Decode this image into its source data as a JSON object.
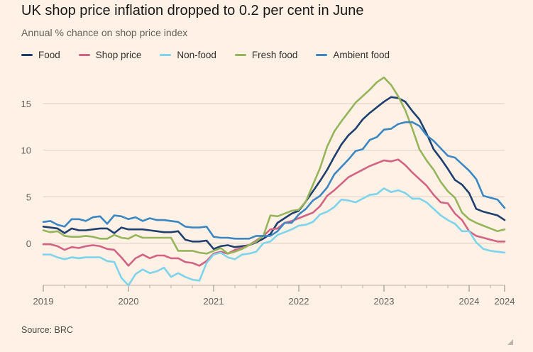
{
  "title": "UK shop price inflation dropped to 0.2 per cent in June",
  "subtitle": "Annual % chance on shop price index",
  "source": "Source: BRC",
  "colors": {
    "background": "#fff1e5",
    "grid": "#d9cfc5",
    "food": "#1f3f6e",
    "shop_price": "#d36385",
    "non_food": "#7dd4eb",
    "fresh_food": "#96b55b",
    "ambient_food": "#3c87c2"
  },
  "chart_data": {
    "type": "line",
    "title": "UK shop price inflation dropped to 0.2 per cent in June",
    "subtitle": "Annual % chance on shop price index",
    "xlabel": "",
    "ylabel": "",
    "xlim": [
      "2019-01",
      "2024-06"
    ],
    "ylim": [
      -4.5,
      18.5
    ],
    "yticks": [
      0,
      5,
      10,
      15
    ],
    "xtick_labels": [
      {
        "label": "2019",
        "x": "2019-01"
      },
      {
        "label": "2020",
        "x": "2020-01"
      },
      {
        "label": "2021",
        "x": "2021-01"
      },
      {
        "label": "2022",
        "x": "2022-01"
      },
      {
        "label": "2023",
        "x": "2023-01"
      },
      {
        "label": "2024",
        "x": "2024-01"
      },
      {
        "label": "2024",
        "x": "2024-06"
      }
    ],
    "grid": true,
    "legend_position": "top-left",
    "x": [
      "2019-01",
      "2019-02",
      "2019-03",
      "2019-04",
      "2019-05",
      "2019-06",
      "2019-07",
      "2019-08",
      "2019-09",
      "2019-10",
      "2019-11",
      "2019-12",
      "2020-01",
      "2020-02",
      "2020-03",
      "2020-04",
      "2020-05",
      "2020-06",
      "2020-07",
      "2020-08",
      "2020-09",
      "2020-10",
      "2020-11",
      "2020-12",
      "2021-01",
      "2021-02",
      "2021-03",
      "2021-04",
      "2021-05",
      "2021-06",
      "2021-07",
      "2021-08",
      "2021-09",
      "2021-10",
      "2021-11",
      "2021-12",
      "2022-01",
      "2022-02",
      "2022-03",
      "2022-04",
      "2022-05",
      "2022-06",
      "2022-07",
      "2022-08",
      "2022-09",
      "2022-10",
      "2022-11",
      "2022-12",
      "2023-01",
      "2023-02",
      "2023-03",
      "2023-04",
      "2023-05",
      "2023-06",
      "2023-07",
      "2023-08",
      "2023-09",
      "2023-10",
      "2023-11",
      "2023-12",
      "2024-01",
      "2024-02",
      "2024-03",
      "2024-04",
      "2024-05",
      "2024-06"
    ],
    "series": [
      {
        "name": "Food",
        "color_key": "food",
        "values": [
          1.8,
          1.7,
          1.6,
          1.1,
          1.6,
          1.4,
          1.4,
          1.5,
          1.6,
          1.6,
          1.1,
          1.7,
          1.5,
          1.5,
          1.5,
          1.4,
          1.3,
          1.2,
          1.2,
          1.3,
          0.4,
          0.2,
          0.2,
          0.3,
          -0.6,
          -0.3,
          -0.2,
          -0.4,
          -0.3,
          -0.2,
          0.1,
          0.5,
          1.0,
          2.2,
          2.7,
          3.2,
          3.5,
          4.5,
          5.6,
          6.7,
          7.9,
          9.3,
          10.6,
          11.6,
          12.3,
          13.3,
          14.0,
          14.6,
          15.2,
          15.7,
          15.6,
          15.2,
          14.2,
          13.3,
          11.8,
          10.1,
          9.1,
          8.0,
          6.8,
          6.3,
          5.4,
          3.7,
          3.4,
          3.2,
          3.0,
          2.5
        ]
      },
      {
        "name": "Shop price",
        "color_key": "shop_price",
        "values": [
          -0.1,
          -0.1,
          -0.3,
          -0.7,
          -0.4,
          -0.5,
          -0.3,
          -0.2,
          -0.3,
          -0.6,
          -0.7,
          -1.5,
          -2.4,
          -1.6,
          -1.2,
          -1.6,
          -1.3,
          -1.3,
          -1.6,
          -1.6,
          -2.0,
          -2.1,
          -2.4,
          -1.9,
          -1.1,
          -0.9,
          -1.1,
          -0.7,
          -0.5,
          -0.2,
          0.3,
          0.8,
          1.5,
          1.6,
          2.2,
          2.4,
          2.7,
          3.0,
          3.3,
          4.0,
          5.1,
          5.7,
          6.4,
          7.1,
          7.5,
          7.9,
          8.3,
          8.6,
          8.9,
          8.8,
          9.0,
          8.4,
          7.6,
          6.9,
          6.2,
          5.2,
          4.4,
          4.3,
          3.2,
          2.5,
          1.3,
          0.8,
          0.6,
          0.4,
          0.2,
          0.2
        ]
      },
      {
        "name": "Non-food",
        "color_key": "non_food",
        "values": [
          -1.2,
          -1.2,
          -1.5,
          -1.7,
          -1.5,
          -1.6,
          -1.5,
          -1.5,
          -1.5,
          -1.9,
          -2.0,
          -3.7,
          -4.5,
          -3.3,
          -2.8,
          -3.2,
          -3.0,
          -2.6,
          -3.6,
          -3.2,
          -3.6,
          -3.9,
          -4.0,
          -2.1,
          -1.2,
          -1.0,
          -1.5,
          -1.7,
          -1.2,
          -1.1,
          -0.9,
          0.0,
          0.2,
          0.9,
          1.2,
          1.5,
          1.9,
          2.0,
          2.3,
          3.1,
          3.4,
          3.9,
          4.7,
          4.6,
          4.4,
          4.8,
          5.2,
          5.3,
          5.9,
          5.5,
          5.7,
          5.4,
          4.8,
          4.8,
          4.4,
          3.7,
          3.0,
          2.5,
          2.1,
          1.3,
          1.3,
          0.1,
          -0.6,
          -0.8,
          -0.9,
          -1.0
        ]
      },
      {
        "name": "Fresh food",
        "color_key": "fresh_food",
        "values": [
          1.4,
          1.2,
          1.3,
          0.8,
          0.7,
          0.7,
          0.8,
          0.7,
          0.5,
          0.5,
          0.9,
          0.6,
          0.5,
          0.9,
          0.6,
          0.6,
          0.6,
          0.6,
          0.6,
          -0.8,
          -0.8,
          -0.8,
          -1.0,
          -1.1,
          -0.8,
          -0.5,
          -1.1,
          -0.9,
          -0.6,
          -0.2,
          0.2,
          0.8,
          3.0,
          2.9,
          3.2,
          3.5,
          3.6,
          4.5,
          6.3,
          8.1,
          10.4,
          12.0,
          13.1,
          14.1,
          15.1,
          15.8,
          16.5,
          17.3,
          17.8,
          17.0,
          15.8,
          14.3,
          12.3,
          10.1,
          8.9,
          7.9,
          6.6,
          5.6,
          4.9,
          3.3,
          2.6,
          2.2,
          1.9,
          1.6,
          1.3,
          1.5
        ]
      },
      {
        "name": "Ambient food",
        "color_key": "ambient_food",
        "values": [
          2.3,
          2.4,
          2.0,
          1.8,
          2.6,
          2.6,
          2.4,
          2.8,
          2.9,
          2.1,
          3.0,
          2.9,
          2.6,
          2.8,
          2.4,
          2.7,
          2.5,
          2.5,
          2.4,
          2.3,
          1.8,
          1.7,
          1.7,
          1.8,
          0.7,
          0.6,
          0.6,
          0.5,
          0.5,
          0.5,
          0.8,
          0.8,
          0.8,
          1.3,
          2.2,
          2.2,
          3.1,
          3.7,
          4.6,
          5.1,
          6.0,
          7.4,
          8.2,
          9.0,
          9.9,
          10.1,
          11.1,
          11.4,
          12.2,
          12.3,
          12.8,
          13.0,
          13.0,
          12.6,
          11.6,
          11.0,
          10.2,
          9.4,
          9.2,
          8.5,
          7.8,
          6.9,
          5.1,
          4.9,
          4.7,
          3.8
        ]
      }
    ]
  }
}
